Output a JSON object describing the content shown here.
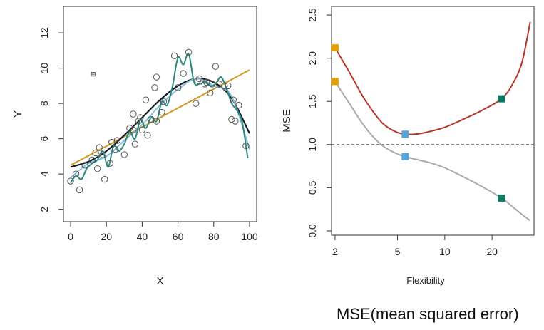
{
  "caption": "MSE(mean squared error)",
  "chart_data": [
    {
      "type": "scatter",
      "xlabel": "X",
      "ylabel": "Y",
      "xlim": [
        -4,
        104
      ],
      "ylim": [
        1.3,
        13.5
      ],
      "x_ticks": [
        0,
        20,
        40,
        60,
        80,
        100
      ],
      "y_ticks": [
        2,
        4,
        6,
        8,
        10,
        12
      ],
      "points": [
        [
          0,
          3.6
        ],
        [
          3,
          4.0
        ],
        [
          5,
          3.1
        ],
        [
          8,
          4.5
        ],
        [
          12,
          4.8
        ],
        [
          14,
          5.2
        ],
        [
          15,
          4.3
        ],
        [
          16,
          5.5
        ],
        [
          18,
          5.1
        ],
        [
          19,
          3.7
        ],
        [
          22,
          4.6
        ],
        [
          23,
          5.8
        ],
        [
          25,
          5.4
        ],
        [
          26,
          5.9
        ],
        [
          30,
          5.1
        ],
        [
          33,
          6.6
        ],
        [
          35,
          6.5
        ],
        [
          35,
          7.4
        ],
        [
          36,
          5.7
        ],
        [
          38,
          7.0
        ],
        [
          39,
          7.2
        ],
        [
          40,
          6.5
        ],
        [
          42,
          8.2
        ],
        [
          43,
          6.2
        ],
        [
          45,
          7.1
        ],
        [
          47,
          8.9
        ],
        [
          48,
          7.0
        ],
        [
          48,
          9.5
        ],
        [
          51,
          7.5
        ],
        [
          52,
          8.1
        ],
        [
          58,
          10.7
        ],
        [
          60,
          8.9
        ],
        [
          63,
          9.7
        ],
        [
          66,
          10.9
        ],
        [
          70,
          8.0
        ],
        [
          71,
          9.3
        ],
        [
          72,
          9.4
        ],
        [
          75,
          9.1
        ],
        [
          76,
          9.2
        ],
        [
          78,
          8.6
        ],
        [
          79,
          9.1
        ],
        [
          81,
          10.1
        ],
        [
          83,
          9.1
        ],
        [
          86,
          9.0
        ],
        [
          88,
          9.0
        ],
        [
          90,
          7.1
        ],
        [
          91,
          8.2
        ],
        [
          92,
          7.0
        ],
        [
          94,
          7.9
        ],
        [
          98,
          5.6
        ]
      ],
      "series": [
        {
          "color": "#d49a1c",
          "x": [
            0,
            100
          ],
          "y": [
            4.5,
            9.9
          ]
        },
        {
          "color": "#0f1f29",
          "x": [
            0,
            10,
            20,
            30,
            40,
            50,
            60,
            70,
            80,
            90,
            100
          ],
          "y": [
            4.4,
            4.7,
            5.3,
            6.2,
            7.2,
            8.2,
            9.0,
            9.4,
            9.2,
            8.3,
            6.3
          ]
        },
        {
          "color": "#8bbcd9",
          "x": [
            0,
            10,
            20,
            30,
            40,
            50,
            60,
            70,
            80,
            90,
            100
          ],
          "y": [
            3.8,
            4.6,
            5.0,
            5.9,
            6.8,
            7.9,
            8.8,
            9.4,
            9.0,
            8.4,
            5.4
          ]
        },
        {
          "color": "#2b8a7e",
          "x": [
            0,
            3,
            6,
            9,
            12,
            15,
            18,
            21,
            24,
            27,
            30,
            33,
            36,
            39,
            42,
            45,
            48,
            51,
            54,
            57,
            60,
            63,
            66,
            69,
            72,
            75,
            78,
            81,
            84,
            87,
            90,
            93,
            96,
            99
          ],
          "y": [
            3.5,
            3.9,
            3.7,
            4.3,
            4.6,
            4.8,
            5.3,
            4.4,
            5.6,
            5.3,
            5.7,
            6.4,
            6.0,
            7.1,
            6.6,
            7.2,
            7.0,
            8.1,
            7.9,
            9.0,
            10.6,
            10.2,
            10.8,
            9.2,
            9.1,
            9.2,
            9.0,
            9.1,
            9.5,
            8.9,
            8.0,
            7.6,
            6.9,
            4.9
          ]
        }
      ],
      "annotation": "⊞"
    },
    {
      "type": "line",
      "xlabel": "Flexibility",
      "ylabel": "MSE",
      "x_scale": "log",
      "xlim": [
        1.9,
        37
      ],
      "ylim": [
        -0.05,
        2.6
      ],
      "x_ticks": [
        2,
        5,
        10,
        20
      ],
      "y_ticks": [
        0.0,
        0.5,
        1.0,
        1.5,
        2.0,
        2.5
      ],
      "y_tick_labels": [
        "0.0",
        "0.5",
        "1.0",
        "1.5",
        "2.0",
        "2.5"
      ],
      "reference_line": {
        "y": 1.0,
        "style": "dashed"
      },
      "series": [
        {
          "color": "#b5362b",
          "x": [
            2,
            2.5,
            3,
            3.5,
            4,
            4.5,
            5,
            5.6,
            6.5,
            8,
            10,
            13,
            17,
            23,
            27,
            31,
            35
          ],
          "y": [
            2.12,
            1.82,
            1.56,
            1.38,
            1.25,
            1.18,
            1.14,
            1.12,
            1.12,
            1.15,
            1.2,
            1.29,
            1.39,
            1.53,
            1.7,
            1.95,
            2.42
          ]
        },
        {
          "color": "#aaaaaa",
          "x": [
            2,
            2.5,
            3,
            3.5,
            4,
            4.5,
            5,
            5.6,
            6.5,
            8,
            10,
            13,
            17,
            23,
            27,
            31,
            35
          ],
          "y": [
            1.73,
            1.46,
            1.24,
            1.09,
            0.99,
            0.93,
            0.89,
            0.86,
            0.83,
            0.79,
            0.73,
            0.63,
            0.52,
            0.38,
            0.28,
            0.19,
            0.12
          ]
        }
      ],
      "markers": [
        {
          "x": 2,
          "y": 2.12,
          "color": "#e69f00"
        },
        {
          "x": 2,
          "y": 1.73,
          "color": "#e69f00"
        },
        {
          "x": 5.6,
          "y": 1.12,
          "color": "#56a3d9"
        },
        {
          "x": 5.6,
          "y": 0.86,
          "color": "#56a3d9"
        },
        {
          "x": 23,
          "y": 1.53,
          "color": "#0b7a62"
        },
        {
          "x": 23,
          "y": 0.38,
          "color": "#0b7a62"
        }
      ]
    }
  ]
}
